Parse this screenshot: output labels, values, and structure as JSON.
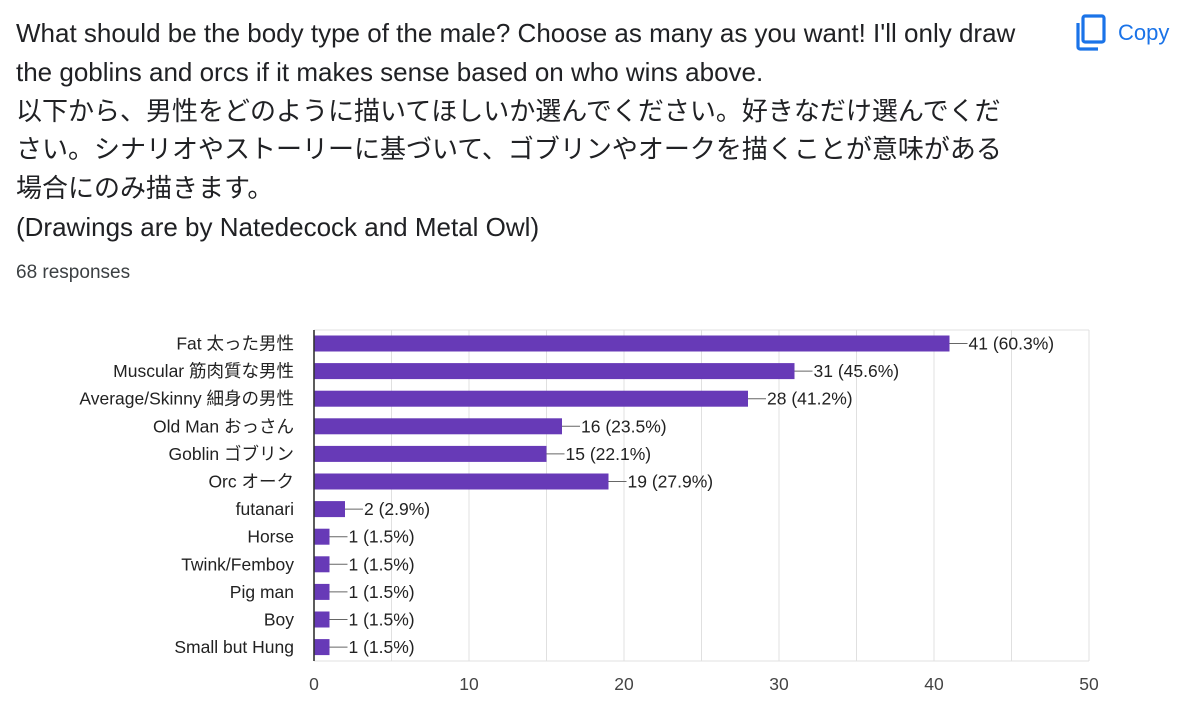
{
  "question": {
    "lines": [
      "What should be the body type of the male? Choose as many as you want! I'll only draw",
      "the goblins and orcs if it makes sense based on who wins above.",
      "以下から、男性をどのように描いてほしいか選んでください。好きなだけ選んでくだ",
      "さい。シナリオやストーリーに基づいて、ゴブリンやオークを描くことが意味がある",
      "場合にのみ描きます。",
      "(Drawings are by Natedecock and Metal Owl)"
    ]
  },
  "responses_text": "68 responses",
  "copy": {
    "label": "Copy",
    "icon": "copy-icon"
  },
  "colors": {
    "bar": "#673ab7",
    "grid": "#e0e0e0",
    "axis": "#333333",
    "accent": "#1a73e8"
  },
  "chart_data": {
    "type": "bar",
    "orientation": "horizontal",
    "categories": [
      "Fat 太った男性",
      "Muscular 筋肉質な男性",
      "Average/Skinny 細身の男性",
      "Old Man おっさん",
      "Goblin ゴブリン",
      "Orc オーク",
      "futanari",
      "Horse",
      "Twink/Femboy",
      "Pig man",
      "Boy",
      "Small but Hung"
    ],
    "values": [
      41,
      31,
      28,
      16,
      15,
      19,
      2,
      1,
      1,
      1,
      1,
      1
    ],
    "data_labels": [
      "41 (60.3%)",
      "31 (45.6%)",
      "28 (41.2%)",
      "16 (23.5%)",
      "15 (22.1%)",
      "19 (27.9%)",
      "2 (2.9%)",
      "1 (1.5%)",
      "1 (1.5%)",
      "1 (1.5%)",
      "1 (1.5%)",
      "1 (1.5%)"
    ],
    "xlim": [
      0,
      50
    ],
    "xticks": [
      0,
      10,
      20,
      30,
      40,
      50
    ],
    "xtick_labels": [
      "0",
      "10",
      "20",
      "30",
      "40",
      "50"
    ],
    "grid": true
  }
}
